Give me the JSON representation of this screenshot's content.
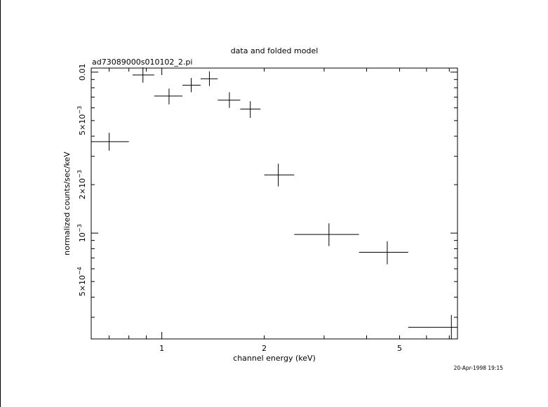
{
  "chart_data": {
    "type": "scatter",
    "title": "data and folded model",
    "subtitle": "ad73089000s010102_2.pi",
    "xlabel": "channel energy (keV)",
    "ylabel": "normalized counts/sec/keV",
    "timestamp": "20-Apr-1998 19:15",
    "xscale": "log",
    "yscale": "log",
    "xlim": [
      0.62,
      7.4
    ],
    "ylim": [
      0.00022,
      0.0106
    ],
    "x_ticks": [
      {
        "value": 1,
        "label": "1"
      },
      {
        "value": 2,
        "label": "2"
      },
      {
        "value": 5,
        "label": "5"
      }
    ],
    "y_ticks": [
      {
        "value": 0.0005,
        "label_main": "5×10",
        "label_exp": "−4"
      },
      {
        "value": 0.001,
        "label_main": "10",
        "label_exp": "−3"
      },
      {
        "value": 0.002,
        "label_main": "2×10",
        "label_exp": "−3"
      },
      {
        "value": 0.005,
        "label_main": "5×10",
        "label_exp": "−3"
      },
      {
        "value": 0.01,
        "label_main": "0.01",
        "label_exp": ""
      }
    ],
    "points": [
      {
        "x": 0.7,
        "xlo": 0.62,
        "xhi": 0.8,
        "y": 0.0037,
        "ylo": 0.00325,
        "yhi": 0.0042
      },
      {
        "x": 0.88,
        "xlo": 0.82,
        "xhi": 0.95,
        "y": 0.0096,
        "ylo": 0.0086,
        "yhi": 0.0107
      },
      {
        "x": 1.05,
        "xlo": 0.95,
        "xhi": 1.15,
        "y": 0.0071,
        "ylo": 0.0063,
        "yhi": 0.0079
      },
      {
        "x": 1.22,
        "xlo": 1.15,
        "xhi": 1.3,
        "y": 0.0083,
        "ylo": 0.0075,
        "yhi": 0.0092
      },
      {
        "x": 1.38,
        "xlo": 1.3,
        "xhi": 1.46,
        "y": 0.0091,
        "ylo": 0.0082,
        "yhi": 0.0101
      },
      {
        "x": 1.58,
        "xlo": 1.46,
        "xhi": 1.7,
        "y": 0.0067,
        "ylo": 0.006,
        "yhi": 0.0075
      },
      {
        "x": 1.82,
        "xlo": 1.7,
        "xhi": 1.95,
        "y": 0.0059,
        "ylo": 0.0052,
        "yhi": 0.0066
      },
      {
        "x": 2.2,
        "xlo": 2.0,
        "xhi": 2.45,
        "y": 0.0023,
        "ylo": 0.00195,
        "yhi": 0.0027
      },
      {
        "x": 3.1,
        "xlo": 2.45,
        "xhi": 3.8,
        "y": 0.00098,
        "ylo": 0.00083,
        "yhi": 0.00115
      },
      {
        "x": 4.6,
        "xlo": 3.8,
        "xhi": 5.3,
        "y": 0.00076,
        "ylo": 0.00064,
        "yhi": 0.00089
      },
      {
        "x": 7.1,
        "xlo": 5.3,
        "xhi": 7.4,
        "y": 0.00026,
        "ylo": 0.00022,
        "yhi": 0.00031
      }
    ]
  }
}
